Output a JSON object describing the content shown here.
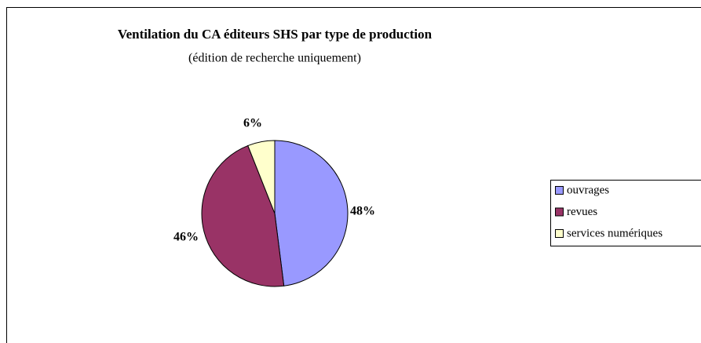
{
  "chart_data": {
    "type": "pie",
    "title": "Ventilation du CA éditeurs SHS par type de production",
    "subtitle": "(édition de recherche uniquement)",
    "categories": [
      "ouvrages",
      "revues",
      "services numériques"
    ],
    "values": [
      48,
      46,
      6
    ],
    "value_labels": [
      "48%",
      "46%",
      "6%"
    ],
    "colors": [
      "#9999ff",
      "#993366",
      "#ffffcc"
    ],
    "legend": "right"
  }
}
